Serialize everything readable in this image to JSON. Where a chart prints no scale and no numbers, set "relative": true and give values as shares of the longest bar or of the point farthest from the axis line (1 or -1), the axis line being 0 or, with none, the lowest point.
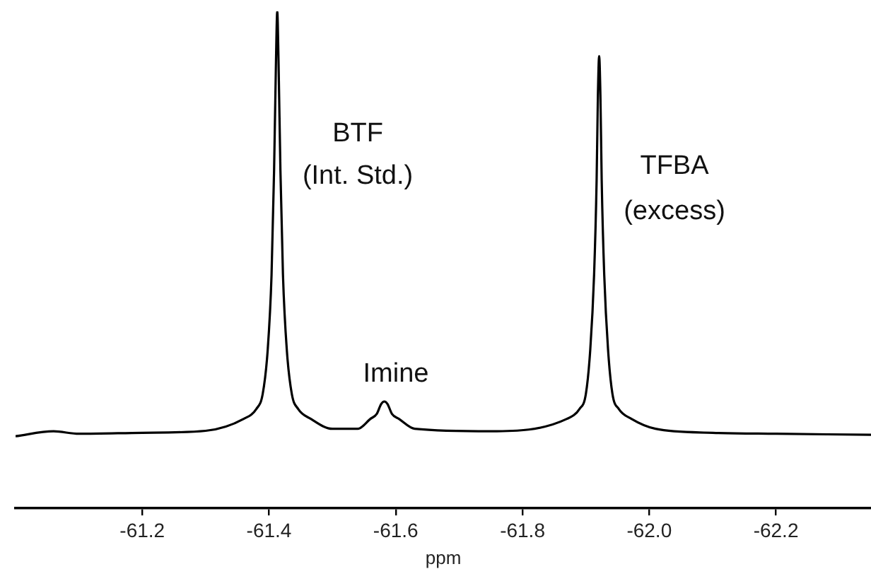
{
  "chart_data": {
    "type": "line",
    "relative": true,
    "xlabel": "ppm",
    "xlim": [
      -61.0,
      -62.35
    ],
    "xticks": [
      -61.2,
      -61.4,
      -61.6,
      -61.8,
      {
        "value": -62.0,
        "label": "-62.0"
      },
      -62.2
    ],
    "x": [
      -61.0,
      -61.06,
      -61.1,
      -61.2,
      -61.3,
      -61.36,
      -61.38,
      -61.39,
      -61.398,
      -61.404,
      -61.408,
      -61.411,
      -61.413,
      -61.415,
      -61.418,
      -61.422,
      -61.428,
      -61.436,
      -61.446,
      -61.466,
      -61.5,
      -61.54,
      -61.56,
      -61.57,
      -61.577,
      -61.582,
      -61.587,
      -61.594,
      -61.605,
      -61.63,
      -61.75,
      -61.87,
      -61.89,
      -61.9,
      -61.907,
      -61.913,
      -61.917,
      -61.919,
      -61.921,
      -61.923,
      -61.925,
      -61.929,
      -61.935,
      -61.942,
      -61.952,
      -61.972,
      -62.01,
      -62.1,
      -62.2,
      -62.35
    ],
    "series": [
      {
        "color": "#000000",
        "values": [
          0.145,
          0.155,
          0.15,
          0.152,
          0.156,
          0.18,
          0.2,
          0.23,
          0.32,
          0.47,
          0.68,
          0.9,
          1,
          0.9,
          0.68,
          0.47,
          0.32,
          0.23,
          0.2,
          0.18,
          0.16,
          0.16,
          0.18,
          0.19,
          0.21,
          0.215,
          0.21,
          0.19,
          0.18,
          0.16,
          0.155,
          0.18,
          0.2,
          0.23,
          0.32,
          0.47,
          0.66,
          0.83,
          0.91,
          0.83,
          0.66,
          0.47,
          0.32,
          0.23,
          0.2,
          0.18,
          0.16,
          0.152,
          0.15,
          0.148
        ]
      }
    ],
    "annotations": [
      "BTF",
      "(Int. Std.)",
      "Imine",
      "TFBA",
      "(excess)"
    ],
    "grid": false,
    "legend": false,
    "marker": "none",
    "line_style": "solid"
  }
}
